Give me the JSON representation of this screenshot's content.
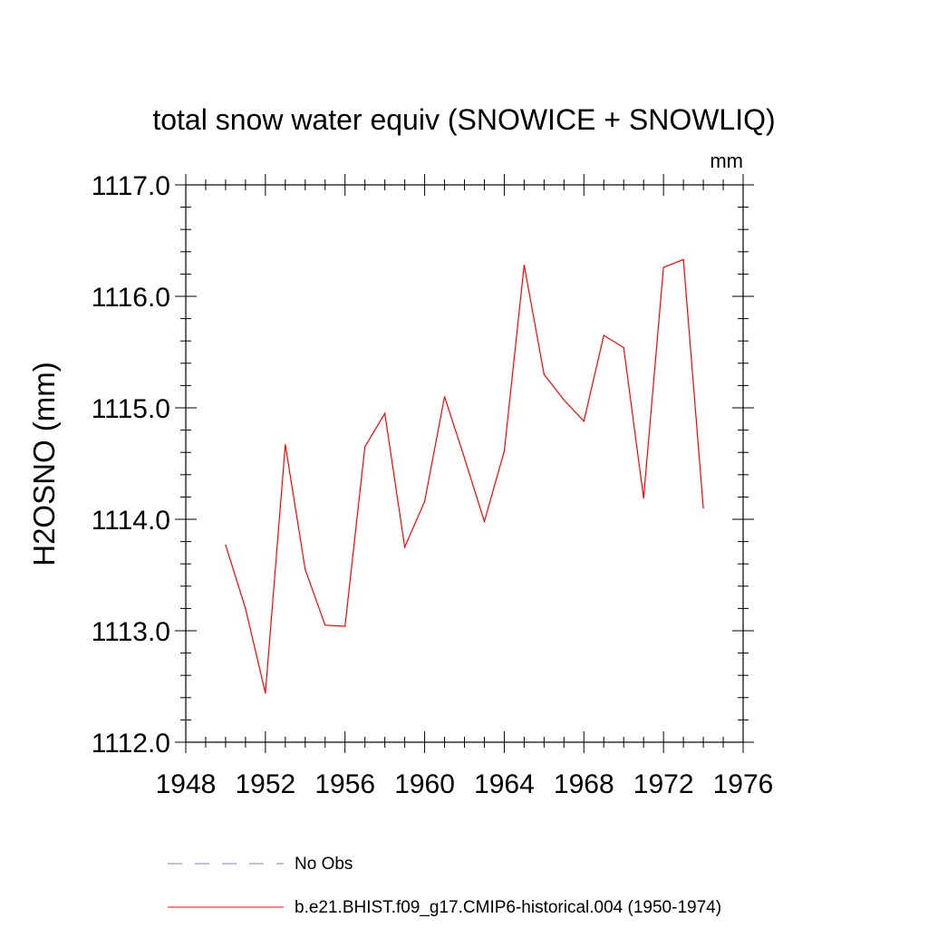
{
  "chart_data": {
    "type": "line",
    "title": "total snow water equiv (SNOWICE + SNOWLIQ)",
    "units": "mm",
    "xlabel": "",
    "ylabel": "H2OSNO  (mm)",
    "xlim": [
      1948,
      1976
    ],
    "ylim": [
      1112.0,
      1117.0
    ],
    "x_ticks": [
      1948,
      1952,
      1956,
      1960,
      1964,
      1968,
      1972,
      1976
    ],
    "x_tick_labels": [
      "1948",
      "1952",
      "1956",
      "1960",
      "1964",
      "1968",
      "1972",
      "1976"
    ],
    "y_ticks": [
      1112.0,
      1113.0,
      1114.0,
      1115.0,
      1116.0,
      1117.0
    ],
    "y_tick_labels": [
      "1112.0",
      "1113.0",
      "1114.0",
      "1115.0",
      "1116.0",
      "1117.0"
    ],
    "grid": false,
    "legend_position": "bottom",
    "series": [
      {
        "name": "b.e21.BHIST.f09_g17.CMIP6-historical.004 (1950-1974)",
        "color": "#ff0000",
        "dash": "solid",
        "x": [
          1950,
          1951,
          1952,
          1953,
          1954,
          1955,
          1956,
          1957,
          1958,
          1959,
          1960,
          1961,
          1962,
          1963,
          1964,
          1965,
          1966,
          1967,
          1968,
          1969,
          1970,
          1971,
          1972,
          1973,
          1974
        ],
        "values": [
          1113.77,
          1113.2,
          1112.44,
          1114.67,
          1113.55,
          1113.05,
          1113.04,
          1114.65,
          1114.95,
          1113.75,
          1114.16,
          1115.1,
          1114.55,
          1113.98,
          1114.61,
          1116.28,
          1115.3,
          1115.07,
          1114.88,
          1115.65,
          1115.54,
          1114.19,
          1116.26,
          1116.33,
          1114.1
        ]
      }
    ],
    "legend": [
      {
        "label": "No Obs",
        "color": "#7b7bd8",
        "dash": "dashed"
      },
      {
        "label": "b.e21.BHIST.f09_g17.CMIP6-historical.004 (1950-1974)",
        "color": "#ff0000",
        "dash": "solid"
      }
    ]
  }
}
